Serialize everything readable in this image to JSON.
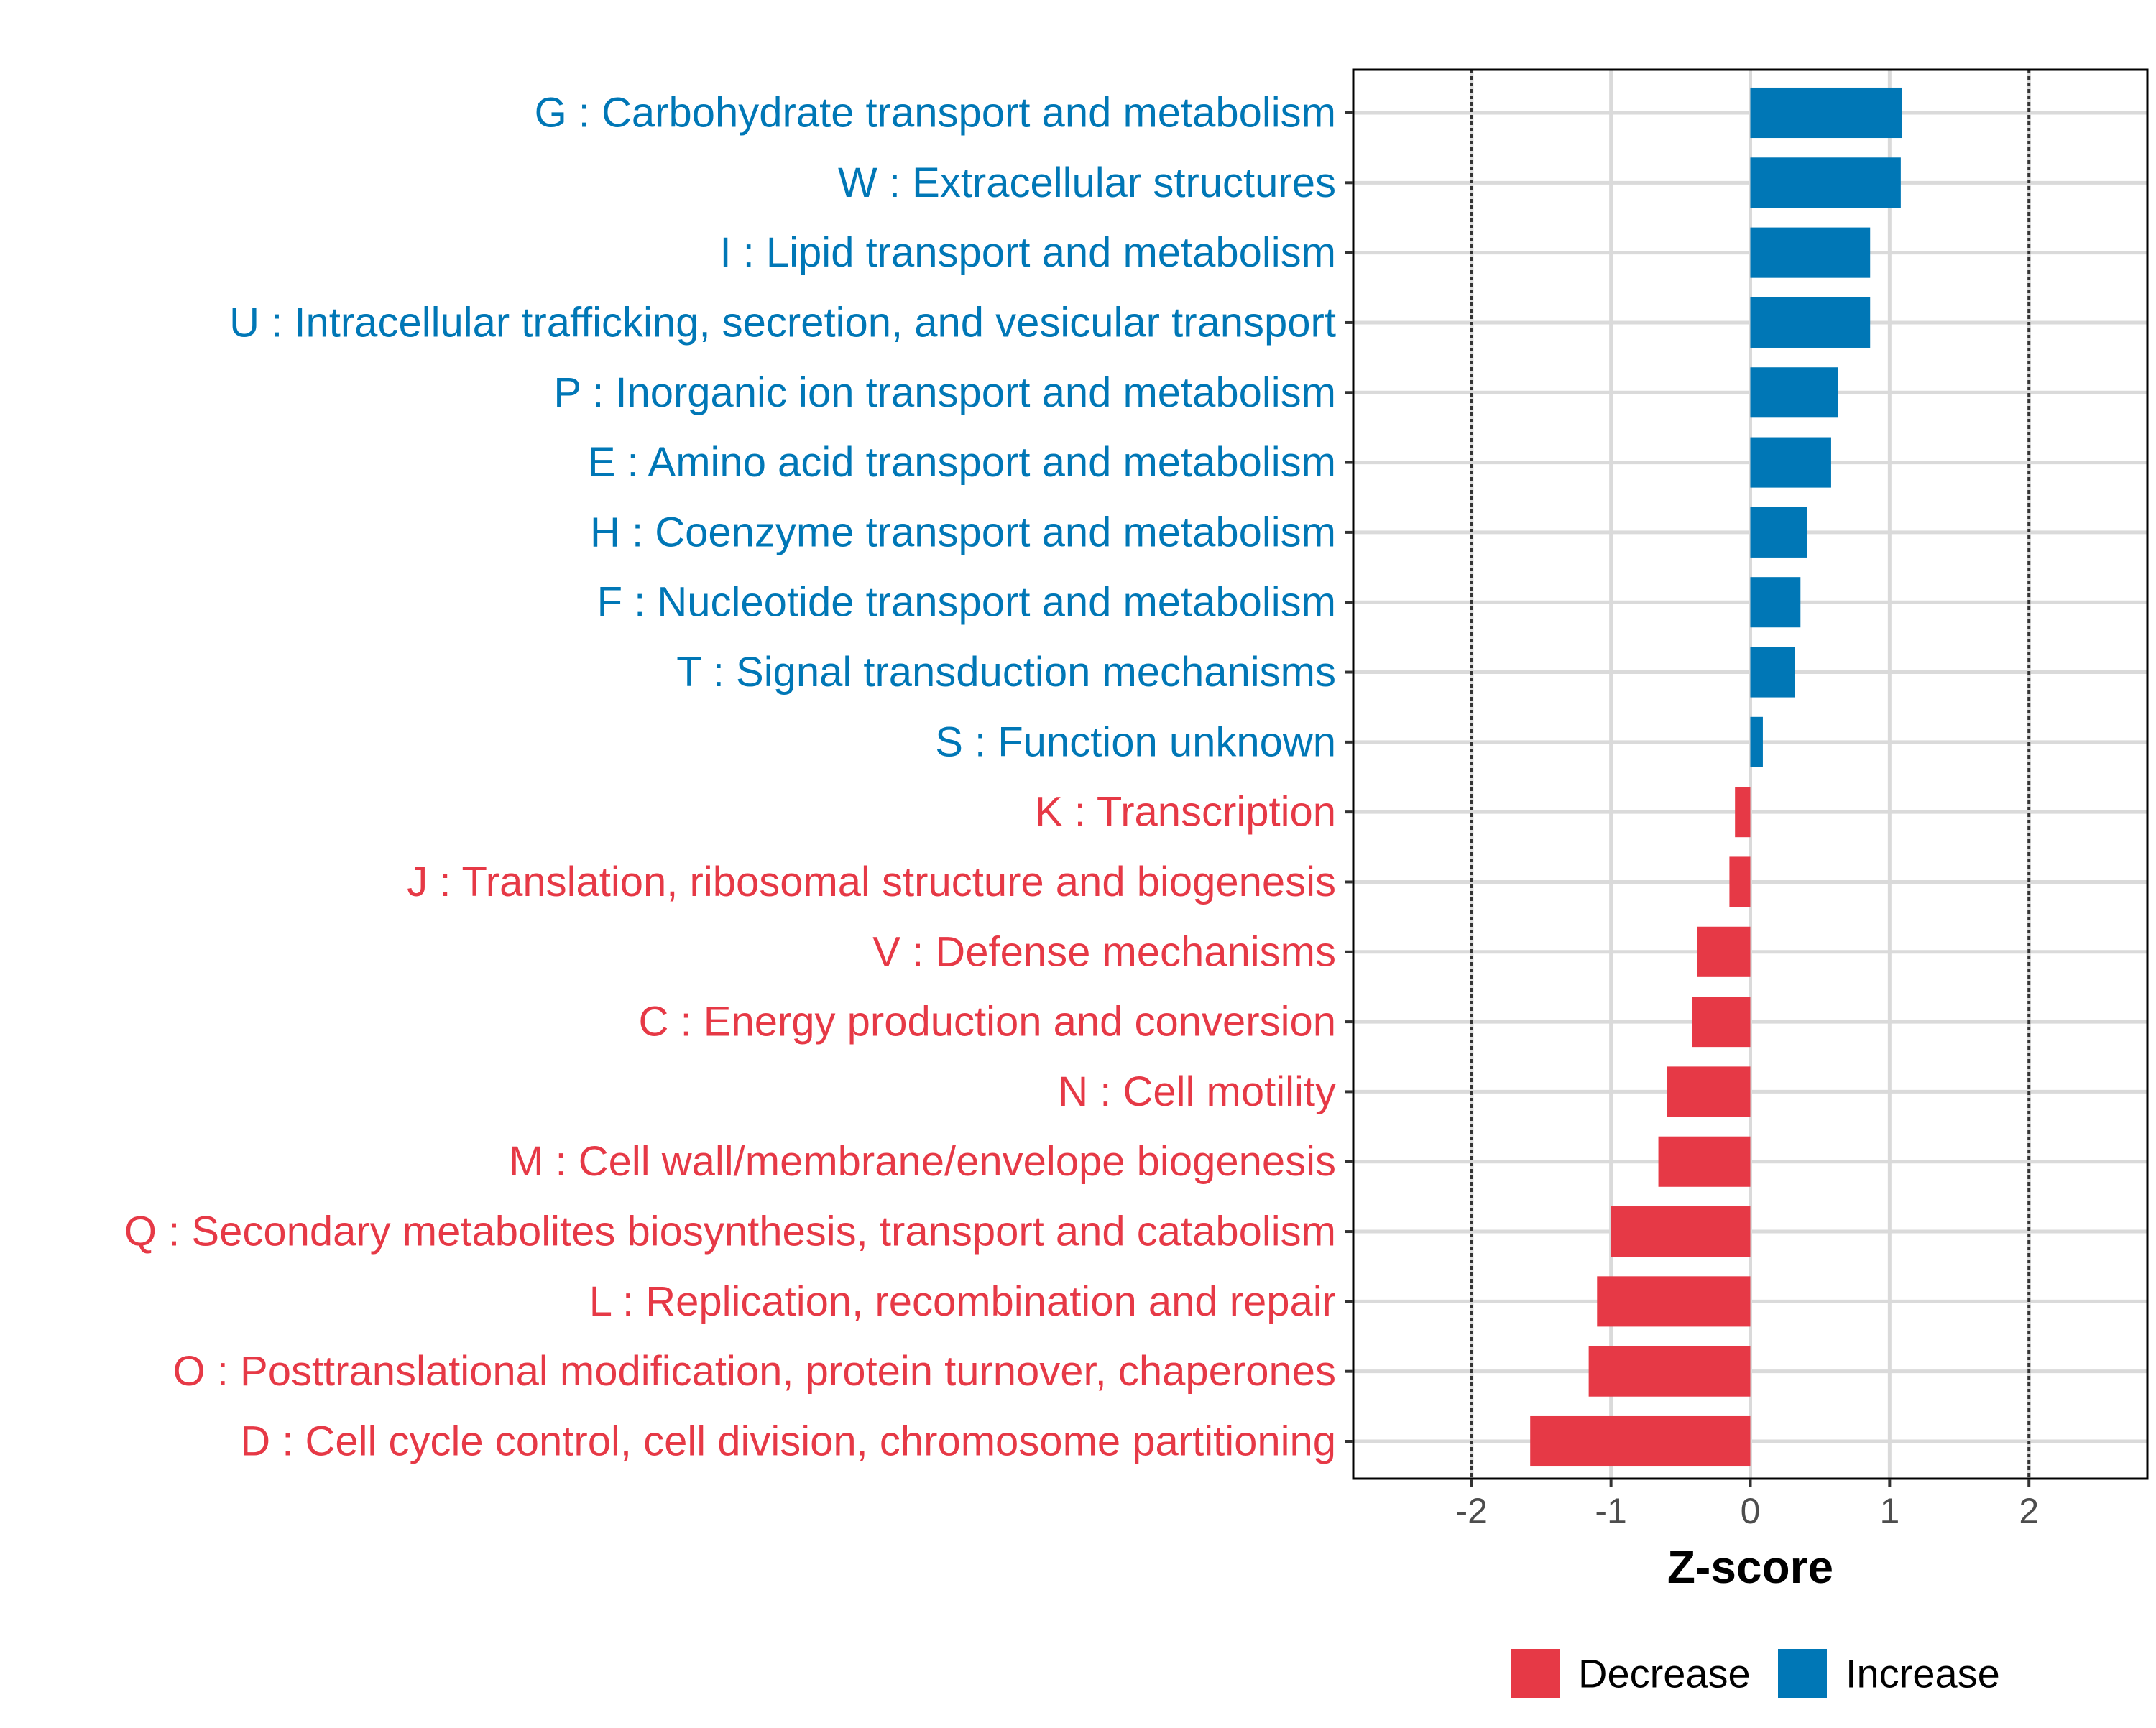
{
  "chart_data": {
    "type": "bar",
    "orientation": "horizontal",
    "title": "",
    "xlabel": "Z-score",
    "ylabel": "",
    "xlim": [
      -2.85,
      2.85
    ],
    "xticks": [
      -2,
      -1,
      0,
      1,
      2
    ],
    "xtick_labels": [
      "-2",
      "-1",
      "0",
      "1",
      "2"
    ],
    "reference_lines": [
      -2,
      2
    ],
    "grid": true,
    "legend_position": "bottom",
    "colors": {
      "Decrease": "#E63946",
      "Increase": "#0077B6"
    },
    "legend": [
      {
        "name": "Decrease",
        "color": "#E63946"
      },
      {
        "name": "Increase",
        "color": "#0077B6"
      }
    ],
    "categories": [
      "G : Carbohydrate transport and metabolism",
      "W : Extracellular structures",
      "I : Lipid transport and metabolism",
      "U : Intracellular trafficking, secretion, and vesicular transport",
      "P : Inorganic ion transport and metabolism",
      "E : Amino acid transport and metabolism",
      "H : Coenzyme transport and metabolism",
      "F : Nucleotide transport and metabolism",
      "T : Signal transduction mechanisms",
      "S : Function unknown",
      "K : Transcription",
      "J : Translation, ribosomal structure and biogenesis",
      "V : Defense mechanisms",
      "C : Energy production and conversion",
      "N : Cell motility",
      "M : Cell wall/membrane/envelope biogenesis",
      "Q : Secondary metabolites biosynthesis, transport and catabolism",
      "L : Replication, recombination and repair",
      "O : Posttranslational modification, protein turnover, chaperones",
      "D : Cell cycle control, cell division, chromosome partitioning"
    ],
    "values": [
      1.09,
      1.08,
      0.86,
      0.86,
      0.63,
      0.58,
      0.41,
      0.36,
      0.32,
      0.09,
      -0.11,
      -0.15,
      -0.38,
      -0.42,
      -0.6,
      -0.66,
      -1.0,
      -1.1,
      -1.16,
      -1.58
    ],
    "groups": [
      "Increase",
      "Increase",
      "Increase",
      "Increase",
      "Increase",
      "Increase",
      "Increase",
      "Increase",
      "Increase",
      "Increase",
      "Decrease",
      "Decrease",
      "Decrease",
      "Decrease",
      "Decrease",
      "Decrease",
      "Decrease",
      "Decrease",
      "Decrease",
      "Decrease"
    ]
  }
}
